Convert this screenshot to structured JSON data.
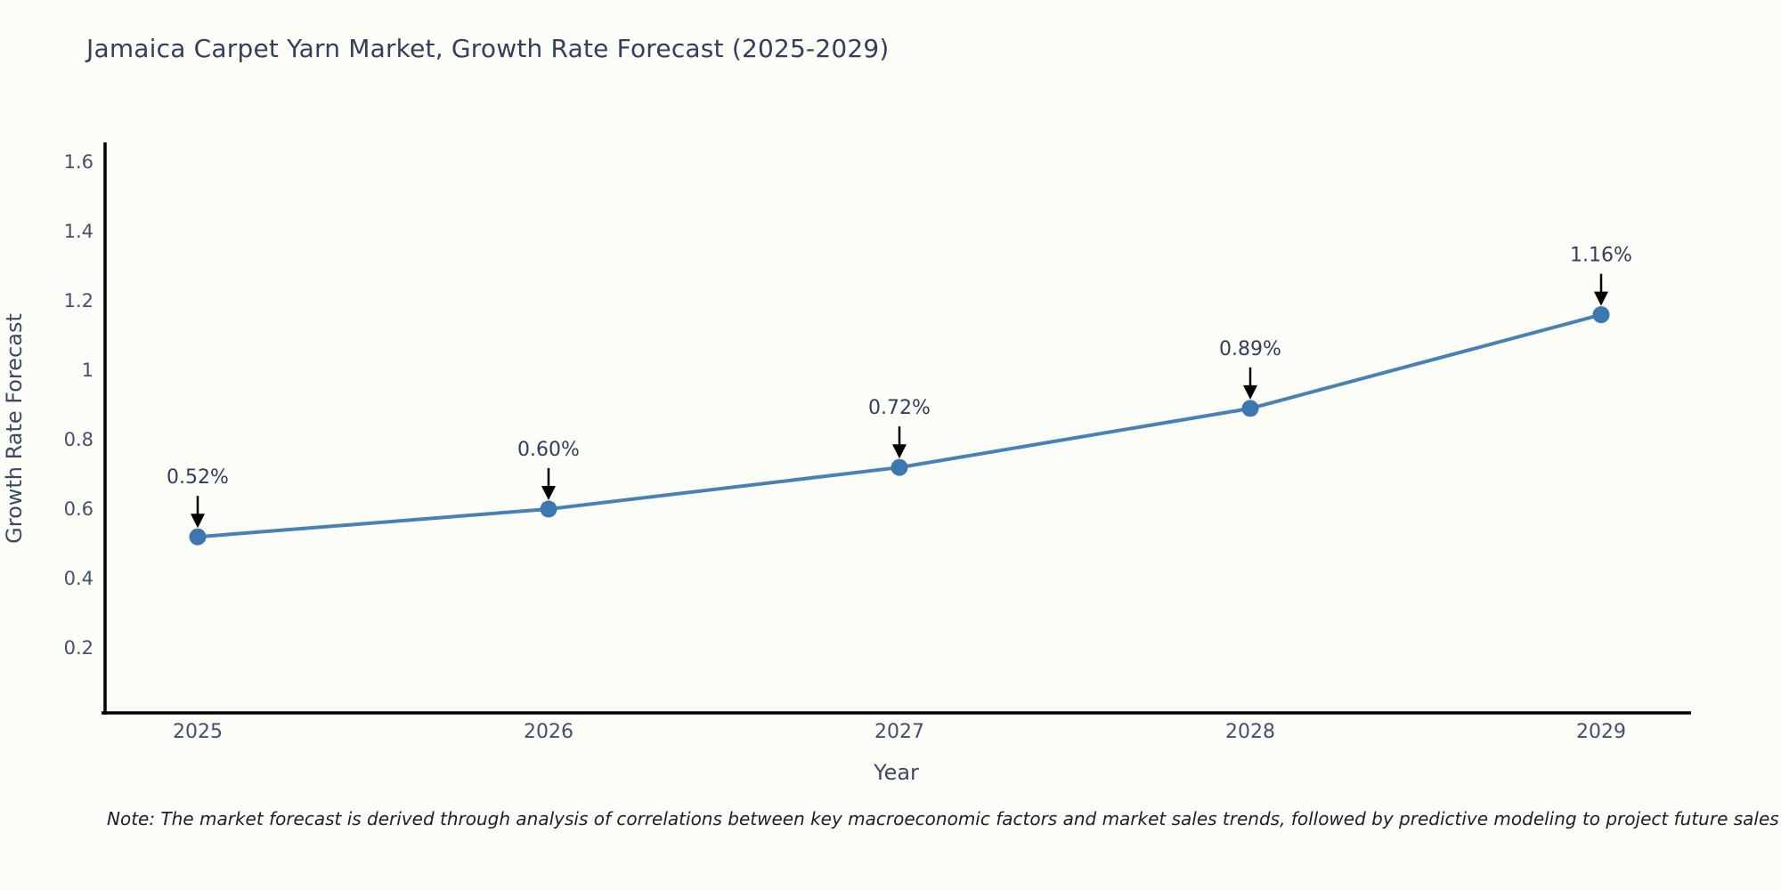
{
  "title": "Jamaica Carpet Yarn Market, Growth Rate Forecast (2025-2029)",
  "note": "Note: The market forecast is derived through analysis of correlations between key macroeconomic factors and market sales trends, followed by predictive modeling to project future sales",
  "chart_data": {
    "type": "line",
    "title": "Jamaica Carpet Yarn Market, Growth Rate Forecast (2025-2029)",
    "xlabel": "Year",
    "ylabel": "Growth Rate Forecast",
    "categories": [
      "2025",
      "2026",
      "2027",
      "2028",
      "2029"
    ],
    "series": [
      {
        "name": "Growth Rate Forecast",
        "values": [
          0.52,
          0.6,
          0.72,
          0.89,
          1.16
        ],
        "point_labels": [
          "0.52%",
          "0.60%",
          "0.72%",
          "0.89%",
          "1.16%"
        ]
      }
    ],
    "ylim": [
      0.0,
      1.66
    ],
    "yticks": [
      0.2,
      0.4,
      0.6,
      0.8,
      1,
      1.2,
      1.4,
      1.6
    ],
    "ytick_labels": [
      "0.2",
      "0.4",
      "0.6",
      "0.8",
      "1",
      "1.2",
      "1.4",
      "1.6"
    ],
    "grid": false,
    "legend_position": "none",
    "annotations_have_arrows": true,
    "colors": {
      "line": "#4682b4",
      "marker": "#3c78b0",
      "axis_spine": "#000000",
      "title_text": "#333f5c",
      "tick_text": "#42516d",
      "axis_label_text": "#3b4a63",
      "annotation_text": "#2e3f5c",
      "annotation_arrow": "#000000",
      "background": "#fdfdf7"
    }
  }
}
